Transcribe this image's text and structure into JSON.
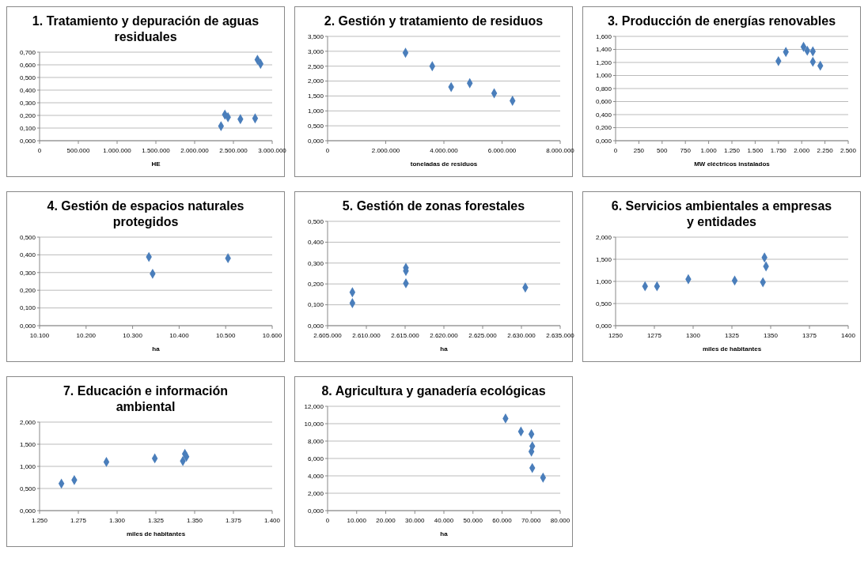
{
  "chart_data": [
    {
      "type": "scatter",
      "title": "1. Tratamiento y depuración de aguas\nresiduales",
      "xlabel": "HE",
      "color": "#4a7ebb",
      "marker": "diamond",
      "grid": "y",
      "x": [
        2340000,
        2390000,
        2430000,
        2590000,
        2780000,
        2810000,
        2850000
      ],
      "values": [
        0.115,
        0.206,
        0.186,
        0.17,
        0.177,
        0.64,
        0.608
      ],
      "xlim": [
        0,
        3000000
      ],
      "xticks": [
        0,
        {
          "value": 500000,
          "label": "500.000"
        },
        {
          "value": 1000000,
          "label": "1.000.000"
        },
        {
          "value": 1500000,
          "label": "1.500.000"
        },
        {
          "value": 2000000,
          "label": "2.000.000"
        },
        {
          "value": 2500000,
          "label": "2.500.000"
        },
        {
          "value": 3000000,
          "label": "3.000.000"
        }
      ],
      "ylim": [
        0,
        0.7
      ],
      "yticks": [
        {
          "value": 0,
          "label": "0,000"
        },
        {
          "value": 0.1,
          "label": "0,100"
        },
        {
          "value": 0.2,
          "label": "0,200"
        },
        {
          "value": 0.3,
          "label": "0,300"
        },
        {
          "value": 0.4,
          "label": "0,400"
        },
        {
          "value": 0.5,
          "label": "0,500"
        },
        {
          "value": 0.6,
          "label": "0,600"
        },
        {
          "value": 0.7,
          "label": "0,700"
        }
      ]
    },
    {
      "type": "scatter",
      "title": "2. Gestión y tratamiento de residuos",
      "xlabel": "toneladas de residuos",
      "color": "#4a7ebb",
      "marker": "diamond",
      "grid": "y",
      "x": [
        2680000,
        3600000,
        4250000,
        4890000,
        5730000,
        6360000
      ],
      "values": [
        2.95,
        2.5,
        1.8,
        1.93,
        1.59,
        1.34
      ],
      "xlim": [
        0,
        8000000
      ],
      "xticks": [
        0,
        {
          "value": 2000000,
          "label": "2.000.000"
        },
        {
          "value": 4000000,
          "label": "4.000.000"
        },
        {
          "value": 6000000,
          "label": "6.000.000"
        },
        {
          "value": 8000000,
          "label": "8.000.000"
        }
      ],
      "ylim": [
        0,
        3.5
      ],
      "yticks": [
        {
          "value": 0,
          "label": "0,000"
        },
        {
          "value": 0.5,
          "label": "0,500"
        },
        {
          "value": 1,
          "label": "1,000"
        },
        {
          "value": 1.5,
          "label": "1,500"
        },
        {
          "value": 2,
          "label": "2,000"
        },
        {
          "value": 2.5,
          "label": "2,500"
        },
        {
          "value": 3,
          "label": "3,000"
        },
        {
          "value": 3.5,
          "label": "3,500"
        }
      ]
    },
    {
      "type": "scatter",
      "title": "3. Producción de energías renovables",
      "xlabel": "MW eléctricos instalados",
      "color": "#4a7ebb",
      "marker": "diamond",
      "grid": "y",
      "x": [
        1750,
        1830,
        2020,
        2060,
        2120,
        2120,
        2200
      ],
      "values": [
        1.22,
        1.36,
        1.44,
        1.38,
        1.37,
        1.21,
        1.15
      ],
      "xlim": [
        0,
        2500
      ],
      "xticks": [
        0,
        250,
        500,
        750,
        {
          "value": 1000,
          "label": "1.000"
        },
        {
          "value": 1250,
          "label": "1.250"
        },
        {
          "value": 1500,
          "label": "1.500"
        },
        {
          "value": 1750,
          "label": "1.750"
        },
        {
          "value": 2000,
          "label": "2.000"
        },
        {
          "value": 2250,
          "label": "2.250"
        },
        {
          "value": 2500,
          "label": "2.500"
        }
      ],
      "ylim": [
        0,
        1.6
      ],
      "yticks": [
        {
          "value": 0,
          "label": "0,000"
        },
        {
          "value": 0.2,
          "label": "0,200"
        },
        {
          "value": 0.4,
          "label": "0,400"
        },
        {
          "value": 0.6,
          "label": "0,600"
        },
        {
          "value": 0.8,
          "label": "0,800"
        },
        {
          "value": 1,
          "label": "1,000"
        },
        {
          "value": 1.2,
          "label": "1,200"
        },
        {
          "value": 1.4,
          "label": "1,400"
        },
        {
          "value": 1.6,
          "label": "1,600"
        }
      ]
    },
    {
      "type": "scatter",
      "title": "4. Gestión de espacios naturales\nprotegidos",
      "xlabel": "ha",
      "color": "#4a7ebb",
      "marker": "diamond",
      "grid": "y",
      "x": [
        10335,
        10343,
        10505
      ],
      "values": [
        0.388,
        0.293,
        0.381
      ],
      "xlim": [
        10100,
        10600
      ],
      "xticks": [
        {
          "value": 10100,
          "label": "10.100"
        },
        {
          "value": 10200,
          "label": "10.200"
        },
        {
          "value": 10300,
          "label": "10.300"
        },
        {
          "value": 10400,
          "label": "10.400"
        },
        {
          "value": 10500,
          "label": "10.500"
        },
        {
          "value": 10600,
          "label": "10.600"
        }
      ],
      "ylim": [
        0,
        0.5
      ],
      "yticks": [
        {
          "value": 0,
          "label": "0,000"
        },
        {
          "value": 0.1,
          "label": "0,100"
        },
        {
          "value": 0.2,
          "label": "0,200"
        },
        {
          "value": 0.3,
          "label": "0,300"
        },
        {
          "value": 0.4,
          "label": "0,400"
        },
        {
          "value": 0.5,
          "label": "0,500"
        }
      ]
    },
    {
      "type": "scatter",
      "title": "5. Gestión de zonas forestales",
      "xlabel": "ha",
      "color": "#4a7ebb",
      "marker": "diamond",
      "grid": "y",
      "x": [
        2608200,
        2608200,
        2615100,
        2615100,
        2615100,
        2630500
      ],
      "values": [
        0.16,
        0.108,
        0.277,
        0.262,
        0.203,
        0.183
      ],
      "xlim": [
        2605000,
        2635000
      ],
      "xticks": [
        {
          "value": 2605000,
          "label": "2.605.000"
        },
        {
          "value": 2610000,
          "label": "2.610.000"
        },
        {
          "value": 2615000,
          "label": "2.615.000"
        },
        {
          "value": 2620000,
          "label": "2.620.000"
        },
        {
          "value": 2625000,
          "label": "2.625.000"
        },
        {
          "value": 2630000,
          "label": "2.630.000"
        },
        {
          "value": 2635000,
          "label": "2.635.000"
        }
      ],
      "ylim": [
        0,
        0.5
      ],
      "yticks": [
        {
          "value": 0,
          "label": "0,000"
        },
        {
          "value": 0.1,
          "label": "0,100"
        },
        {
          "value": 0.2,
          "label": "0,200"
        },
        {
          "value": 0.3,
          "label": "0,300"
        },
        {
          "value": 0.4,
          "label": "0,400"
        },
        {
          "value": 0.5,
          "label": "0,500"
        }
      ]
    },
    {
      "type": "scatter",
      "title": "6. Servicios ambientales a empresas\ny entidades",
      "xlabel": "miles de habitantes",
      "color": "#4a7ebb",
      "marker": "diamond",
      "grid": "y",
      "x": [
        1269,
        1276.7,
        1296.9,
        1326.8,
        1345,
        1346,
        1347
      ],
      "values": [
        0.89,
        0.89,
        1.05,
        1.02,
        0.98,
        1.54,
        1.34
      ],
      "xlim": [
        1250,
        1400
      ],
      "xticks": [
        1250,
        1275,
        1300,
        1325,
        1350,
        1375,
        1400
      ],
      "ylim": [
        0,
        2
      ],
      "yticks": [
        {
          "value": 0,
          "label": "0,000"
        },
        {
          "value": 0.5,
          "label": "0,500"
        },
        {
          "value": 1,
          "label": "1,000"
        },
        {
          "value": 1.5,
          "label": "1,500"
        },
        {
          "value": 2,
          "label": "2,000"
        }
      ]
    },
    {
      "type": "scatter",
      "title": "7. Educación e información\nambiental",
      "xlabel": "miles de habitantes",
      "color": "#4a7ebb",
      "marker": "diamond",
      "grid": "y",
      "x": [
        1264.1,
        1272.4,
        1293.1,
        1324.3,
        1342.4,
        1343.7,
        1344.7
      ],
      "values": [
        0.61,
        0.69,
        1.1,
        1.18,
        1.12,
        1.28,
        1.22
      ],
      "xlim": [
        1250,
        1400
      ],
      "xticks": [
        {
          "value": 1250,
          "label": "1.250"
        },
        {
          "value": 1275,
          "label": "1.275"
        },
        {
          "value": 1300,
          "label": "1.300"
        },
        {
          "value": 1325,
          "label": "1.325"
        },
        {
          "value": 1350,
          "label": "1.350"
        },
        {
          "value": 1375,
          "label": "1.375"
        },
        {
          "value": 1400,
          "label": "1.400"
        }
      ],
      "ylim": [
        0,
        2
      ],
      "yticks": [
        {
          "value": 0,
          "label": "0,000"
        },
        {
          "value": 0.5,
          "label": "0,500"
        },
        {
          "value": 1,
          "label": "1,000"
        },
        {
          "value": 1.5,
          "label": "1,500"
        },
        {
          "value": 2,
          "label": "2,000"
        }
      ]
    },
    {
      "type": "scatter",
      "title": "8. Agricultura y ganadería ecológicas",
      "xlabel": "ha",
      "color": "#4a7ebb",
      "marker": "diamond",
      "grid": "y",
      "x": [
        61200,
        66500,
        70100,
        70400,
        70100,
        70400,
        74100
      ],
      "values": [
        10.6,
        9.1,
        8.8,
        7.4,
        6.8,
        4.9,
        3.8
      ],
      "xlim": [
        0,
        80000
      ],
      "xticks": [
        0,
        {
          "value": 10000,
          "label": "10.000"
        },
        {
          "value": 20000,
          "label": "20.000"
        },
        {
          "value": 30000,
          "label": "30.000"
        },
        {
          "value": 40000,
          "label": "40.000"
        },
        {
          "value": 50000,
          "label": "50.000"
        },
        {
          "value": 60000,
          "label": "60.000"
        },
        {
          "value": 70000,
          "label": "70.000"
        },
        {
          "value": 80000,
          "label": "80.000"
        }
      ],
      "ylim": [
        0,
        12
      ],
      "yticks": [
        {
          "value": 0,
          "label": "0,000"
        },
        {
          "value": 2,
          "label": "2,000"
        },
        {
          "value": 4,
          "label": "4,000"
        },
        {
          "value": 6,
          "label": "6,000"
        },
        {
          "value": 8,
          "label": "8,000"
        },
        {
          "value": 10,
          "label": "10,000"
        },
        {
          "value": 12,
          "label": "12,000"
        }
      ]
    }
  ]
}
